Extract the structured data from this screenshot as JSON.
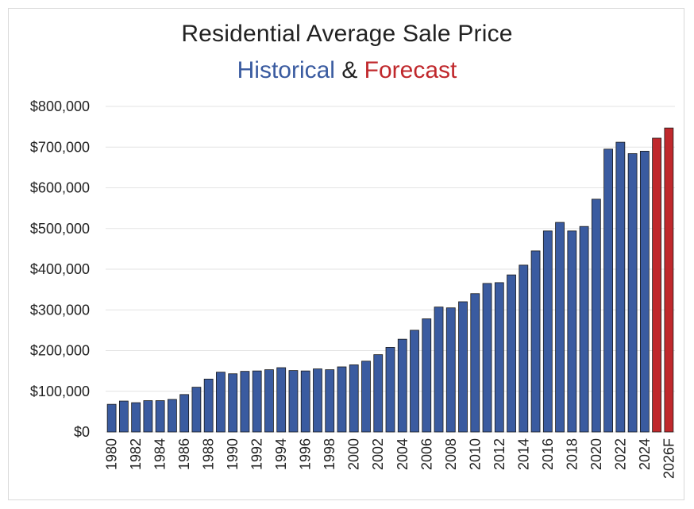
{
  "chart_data": {
    "type": "bar",
    "title": "Residential Average Sale Price",
    "subtitle": {
      "historical_label": "Historical",
      "connector": "&",
      "forecast_label": "Forecast"
    },
    "xlabel": "",
    "ylabel": "",
    "ylim": [
      0,
      800000
    ],
    "y_ticks": [
      {
        "value": 0,
        "label": "$0"
      },
      {
        "value": 100000,
        "label": "$100,000"
      },
      {
        "value": 200000,
        "label": "$200,000"
      },
      {
        "value": 300000,
        "label": "$300,000"
      },
      {
        "value": 400000,
        "label": "$400,000"
      },
      {
        "value": 500000,
        "label": "$500,000"
      },
      {
        "value": 600000,
        "label": "$600,000"
      },
      {
        "value": 700000,
        "label": "$700,000"
      },
      {
        "value": 800000,
        "label": "$800,000"
      }
    ],
    "grid": true,
    "colors": {
      "historical": "#3a5ba0",
      "forecast": "#c0282c",
      "grid": "#e3e3e3",
      "bar_outline": "#1a1a1a"
    },
    "categories": [
      "1980",
      "1981",
      "1982",
      "1983",
      "1984",
      "1985",
      "1986",
      "1987",
      "1988",
      "1989",
      "1990",
      "1991",
      "1992",
      "1993",
      "1994",
      "1995",
      "1996",
      "1997",
      "1998",
      "1999",
      "2000",
      "2001",
      "2002",
      "2003",
      "2004",
      "2005",
      "2006",
      "2007",
      "2008",
      "2009",
      "2010",
      "2011",
      "2012",
      "2013",
      "2014",
      "2015",
      "2016",
      "2017",
      "2018",
      "2019",
      "2020",
      "2021",
      "2022",
      "2023",
      "2024",
      "2025F",
      "2026F"
    ],
    "tick_labels": [
      "1980",
      "",
      "1982",
      "",
      "1984",
      "",
      "1986",
      "",
      "1988",
      "",
      "1990",
      "",
      "1992",
      "",
      "1994",
      "",
      "1996",
      "",
      "1998",
      "",
      "2000",
      "",
      "2002",
      "",
      "2004",
      "",
      "2006",
      "",
      "2008",
      "",
      "2010",
      "",
      "2012",
      "",
      "2014",
      "",
      "2016",
      "",
      "2018",
      "",
      "2020",
      "",
      "2022",
      "",
      "2024",
      "",
      "2026F"
    ],
    "series": [
      {
        "name": "Historical",
        "values": [
          68000,
          76000,
          72000,
          77000,
          77000,
          80000,
          92000,
          110000,
          130000,
          147000,
          143000,
          149000,
          150000,
          153000,
          158000,
          151000,
          150000,
          155000,
          153000,
          160000,
          165000,
          174000,
          190000,
          208000,
          228000,
          250000,
          278000,
          307000,
          305000,
          320000,
          340000,
          365000,
          367000,
          386000,
          410000,
          445000,
          494000,
          515000,
          494000,
          505000,
          572000,
          695000,
          712000,
          684000,
          690000,
          null,
          null
        ]
      },
      {
        "name": "Forecast",
        "values": [
          null,
          null,
          null,
          null,
          null,
          null,
          null,
          null,
          null,
          null,
          null,
          null,
          null,
          null,
          null,
          null,
          null,
          null,
          null,
          null,
          null,
          null,
          null,
          null,
          null,
          null,
          null,
          null,
          null,
          null,
          null,
          null,
          null,
          null,
          null,
          null,
          null,
          null,
          null,
          null,
          null,
          null,
          null,
          null,
          null,
          722000,
          747000
        ]
      }
    ]
  }
}
